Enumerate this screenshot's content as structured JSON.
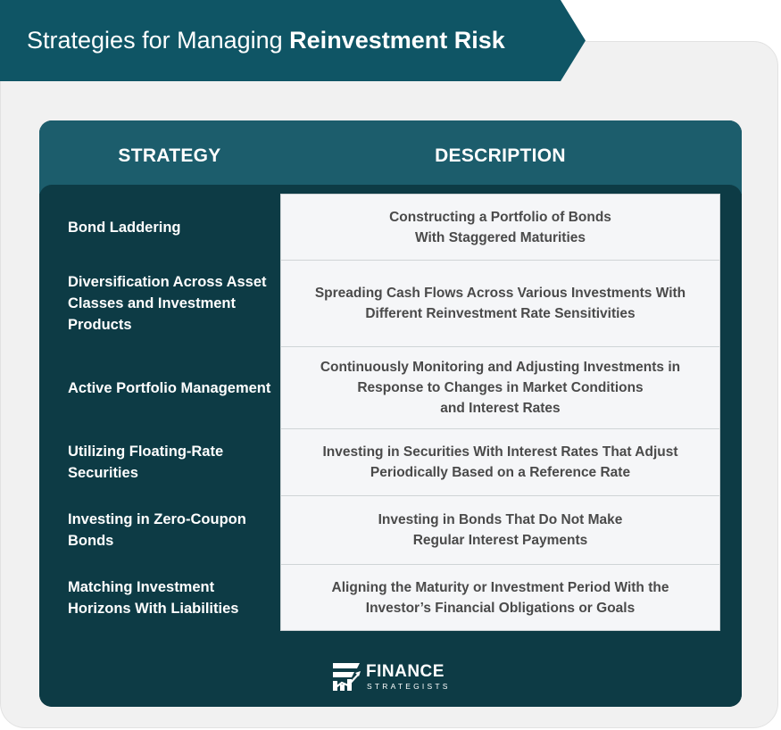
{
  "banner": {
    "title_prefix": "Strategies for Managing ",
    "title_bold": "Reinvestment Risk"
  },
  "table": {
    "headers": {
      "strategy": "STRATEGY",
      "description": "DESCRIPTION"
    },
    "rows": [
      {
        "strategy": "Bond Laddering",
        "description": "Constructing a Portfolio of Bonds\nWith Staggered Maturities"
      },
      {
        "strategy": "Diversification Across Asset Classes and Investment Products",
        "description": "Spreading Cash Flows Across Various Investments With\nDifferent Reinvestment Rate Sensitivities"
      },
      {
        "strategy": "Active Portfolio Management",
        "description": "Continuously Monitoring and Adjusting Investments in\nResponse to Changes in Market Conditions\nand Interest Rates"
      },
      {
        "strategy": "Utilizing Floating-Rate Securities",
        "description": "Investing in Securities With Interest Rates That Adjust\nPeriodically Based on a Reference Rate"
      },
      {
        "strategy": "Investing in Zero-Coupon Bonds",
        "description": "Investing in Bonds That Do Not Make\nRegular Interest Payments"
      },
      {
        "strategy": "Matching Investment Horizons With Liabilities",
        "description": "Aligning the Maturity or Investment Period With the\nInvestor’s Financial Obligations or Goals"
      }
    ]
  },
  "logo": {
    "icon": "finance-strategists-logo-icon",
    "brand": "FINANCE",
    "sub": "STRATEGISTS"
  },
  "colors": {
    "banner": "#0f5565",
    "header_band": "#1c5d6c",
    "card_dark": "#0d3b45",
    "cell_bg": "#f5f6f8",
    "cell_text": "#4a4a4a"
  }
}
